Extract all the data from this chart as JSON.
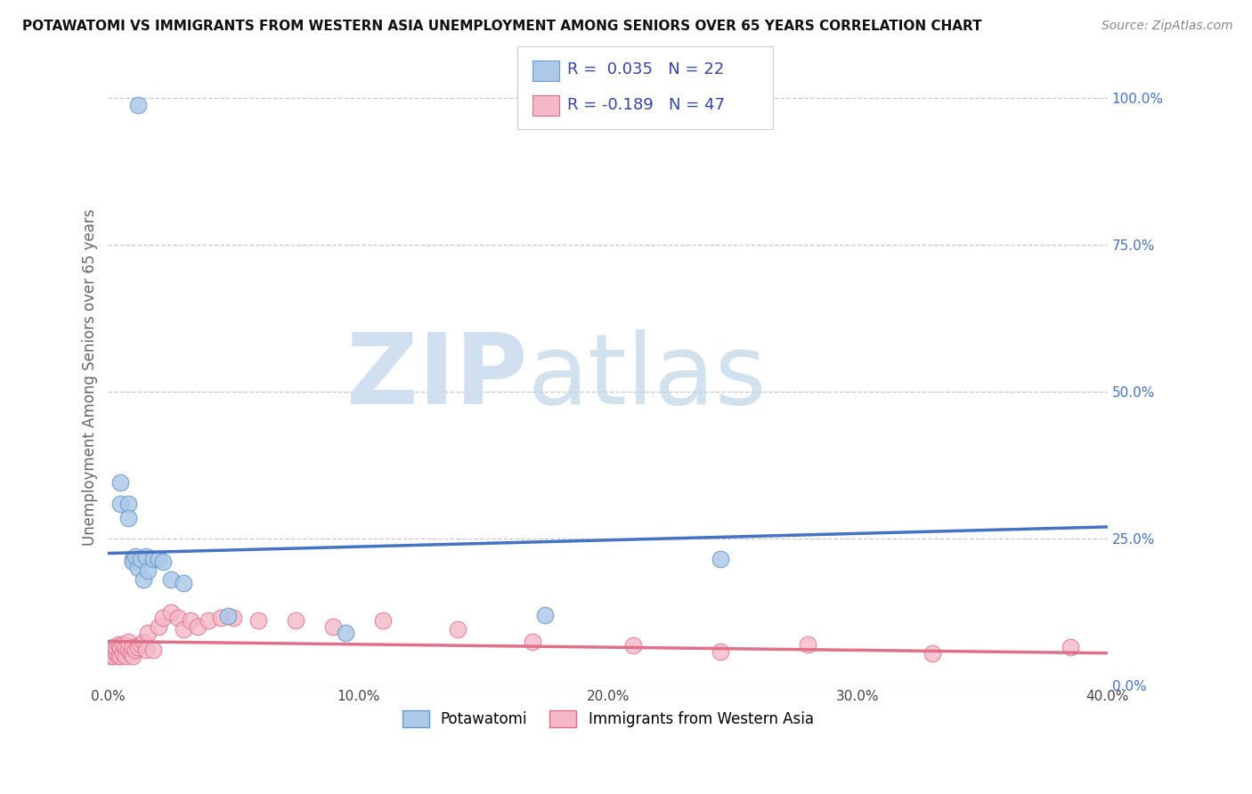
{
  "title": "POTAWATOMI VS IMMIGRANTS FROM WESTERN ASIA UNEMPLOYMENT AMONG SENIORS OVER 65 YEARS CORRELATION CHART",
  "source": "Source: ZipAtlas.com",
  "ylabel": "Unemployment Among Seniors over 65 years",
  "xlim": [
    0.0,
    0.4
  ],
  "ylim": [
    0.0,
    1.05
  ],
  "x_ticks": [
    0.0,
    0.1,
    0.2,
    0.3,
    0.4
  ],
  "x_tick_labels": [
    "0.0%",
    "10.0%",
    "20.0%",
    "30.0%",
    "40.0%"
  ],
  "y_ticks_right": [
    0.0,
    0.25,
    0.5,
    0.75,
    1.0
  ],
  "y_tick_labels_right": [
    "0.0%",
    "25.0%",
    "50.0%",
    "75.0%",
    "100.0%"
  ],
  "blue_color": "#aec9e8",
  "blue_edge_color": "#6699cc",
  "pink_color": "#f5b8c8",
  "pink_edge_color": "#e0708a",
  "blue_line_color": "#4472c4",
  "pink_line_color": "#e0708a",
  "grid_color": "#c8c8c8",
  "legend_label_blue": "Potawatomi",
  "legend_label_pink": "Immigrants from Western Asia",
  "R_blue": 0.035,
  "N_blue": 22,
  "R_pink": -0.189,
  "N_pink": 47,
  "blue_scatter_x": [
    0.012,
    0.005,
    0.005,
    0.008,
    0.008,
    0.01,
    0.01,
    0.011,
    0.012,
    0.013,
    0.014,
    0.015,
    0.016,
    0.018,
    0.02,
    0.022,
    0.025,
    0.03,
    0.048,
    0.095,
    0.175,
    0.245
  ],
  "blue_scatter_y": [
    0.988,
    0.345,
    0.31,
    0.31,
    0.285,
    0.215,
    0.21,
    0.22,
    0.2,
    0.215,
    0.18,
    0.22,
    0.195,
    0.215,
    0.215,
    0.21,
    0.18,
    0.175,
    0.118,
    0.09,
    0.12,
    0.215
  ],
  "pink_scatter_x": [
    0.001,
    0.001,
    0.002,
    0.002,
    0.003,
    0.003,
    0.004,
    0.004,
    0.005,
    0.005,
    0.006,
    0.006,
    0.007,
    0.007,
    0.008,
    0.008,
    0.009,
    0.01,
    0.01,
    0.011,
    0.012,
    0.013,
    0.014,
    0.015,
    0.016,
    0.018,
    0.02,
    0.022,
    0.025,
    0.028,
    0.03,
    0.033,
    0.036,
    0.04,
    0.045,
    0.05,
    0.06,
    0.075,
    0.09,
    0.11,
    0.14,
    0.17,
    0.21,
    0.245,
    0.28,
    0.33,
    0.385
  ],
  "pink_scatter_y": [
    0.05,
    0.06,
    0.05,
    0.065,
    0.055,
    0.065,
    0.05,
    0.07,
    0.05,
    0.065,
    0.055,
    0.07,
    0.05,
    0.065,
    0.06,
    0.075,
    0.055,
    0.05,
    0.065,
    0.06,
    0.065,
    0.07,
    0.075,
    0.06,
    0.09,
    0.06,
    0.1,
    0.115,
    0.125,
    0.115,
    0.095,
    0.11,
    0.1,
    0.11,
    0.115,
    0.115,
    0.11,
    0.11,
    0.1,
    0.11,
    0.095,
    0.075,
    0.068,
    0.058,
    0.07,
    0.055,
    0.065
  ],
  "blue_line_x": [
    0.0,
    0.4
  ],
  "blue_line_y": [
    0.225,
    0.27
  ],
  "pink_line_x": [
    0.0,
    0.4
  ],
  "pink_line_y": [
    0.075,
    0.055
  ]
}
